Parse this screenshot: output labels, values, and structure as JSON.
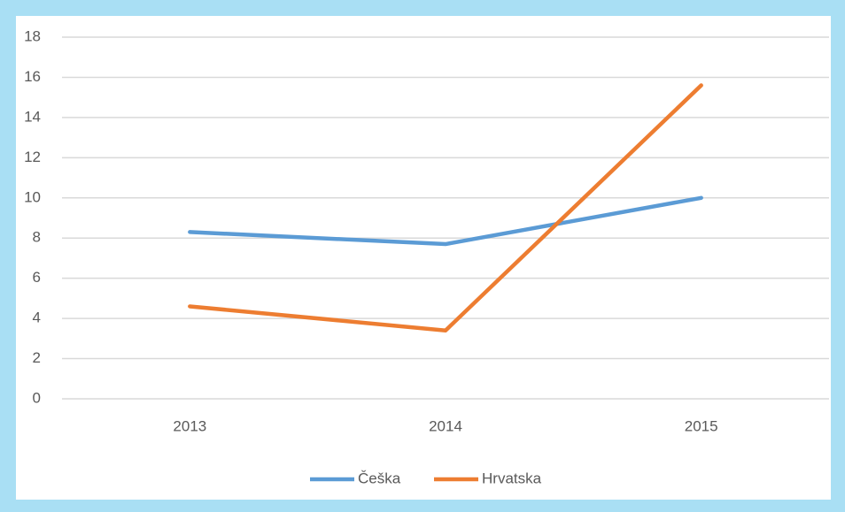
{
  "chart_data": {
    "type": "line",
    "categories": [
      "2013",
      "2014",
      "2015"
    ],
    "series": [
      {
        "name": "Češka",
        "color": "#5b9bd5",
        "values": [
          8.3,
          7.7,
          10.0
        ]
      },
      {
        "name": "Hrvatska",
        "color": "#ed7d31",
        "values": [
          4.6,
          3.4,
          15.6
        ]
      }
    ],
    "ylim": [
      0,
      18
    ],
    "yticks": [
      0,
      2,
      4,
      6,
      8,
      10,
      12,
      14,
      16,
      18
    ],
    "grid": true,
    "legend": "bottom"
  }
}
